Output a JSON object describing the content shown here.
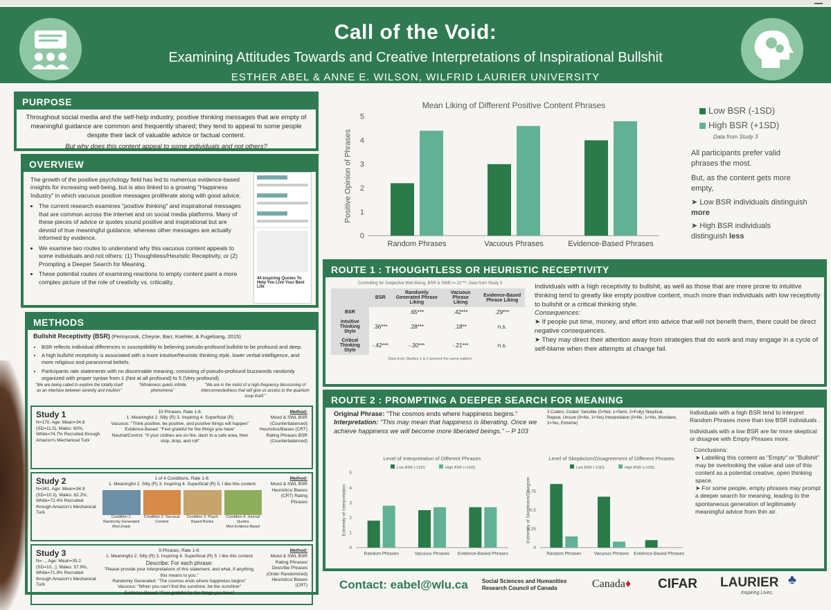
{
  "header": {
    "title": "Call of the Void:",
    "subtitle": "Examining Attitudes Towards and Creative Interpretations of Inspirational Bullshit",
    "authors": "ESTHER ABEL & ANNE E. WILSON, WILFRID LAURIER UNIVERSITY",
    "logo_left": "audience-icon",
    "logo_right": "head-gears-icon"
  },
  "purpose": {
    "heading": "PURPOSE",
    "text": "Throughout social media and the self-help industry, positive thinking messages that are empty of meaningful guidance are common and frequently shared; they tend to appeal to some people despite their lack of valuable advice or factual content.",
    "question": "But why does this content appeal to some individuals and not others?"
  },
  "overview": {
    "heading": "OVERVIEW",
    "intro": "The growth of the positive psychology field has led to numerous evidence-based insights for increasing well-being, but is also linked to a growing \"Happiness Industry\" in which vacuous positive messages proliferate along with good advice.",
    "bullets": [
      "The current research examines \"positive thinking\" and inspirational messages that are common across the internet and on social media platforms. Many of these pieces of advice or quotes sound positive and inspirational but are devoid of true meaningful guidance, whereas other messages are actually informed by evidence.",
      "We examine two routes to understand why this vacuous content appeals to some individuals and not others: (1) Thoughtless/Heuristic Receptivity, or (2) Prompting a Deeper Search for Meaning.",
      "These potential routes of examining reactions to empty content paint a more complex picture of the role of creativity vs. criticality."
    ],
    "thumb_caption": "44 Inspiring Quotes To Help You Live Your Best Life"
  },
  "methods": {
    "heading": "METHODS",
    "bsr_title": "Bullshit Receptivity (BSR)",
    "bsr_cite": "(Pennycook, Cheyne, Barr, Koehler, & Fugelsang, 2015)",
    "bullets": [
      "BSR reflects individual differences in susceptibility to believing pseudo-profound bullshit to be profound and deep.",
      "A high bullshit receptivity is associated with a more intuitive/heuristic thinking style, lower verbal intelligence, and more religious and paranormal beliefs.",
      "Participants rate statements with no discernable meaning, consisting of pseudo-profound buzzwords randomly organized with proper syntax from 1 (Not at all profound) to 5 (Very profound)."
    ],
    "quotes": [
      "\"We are being called to explore the totality itself as an interface between serenity and intuition\"",
      "\"Wholeness quiets infinite phenomena\"",
      "\"We are in the midst of a high-frequency blossoming of interconnectedness that will give us access to the quantum soup itself.\""
    ],
    "study1": {
      "title": "Study 1",
      "participants": "N=170, Age: Mean=34.8 (SD=11.5), Males: 60%, White=74.7% Recruited through Amazon's Mechanical Turk",
      "design": "10 Phrases, Rate 1-6:",
      "scale": "1. Meaningful   2. Silly (R)   3. Inspiring   4. Superficial (R)",
      "vacuous": "Vacuous: \"Think positive, be positive, and positive things will happen\"",
      "evidence": "Evidence-Based: \"Feel grateful for the things you have\"",
      "neutral": "Neutral/Control: \"If your clothes are on fire, dash to a safe area, then stop, drop, and roll\"",
      "method_label": "Method:",
      "method": "Mood & SWL BSR (Counterbalanced) Heuristics/Biases (CRT) Rating Phrases BSR (Counterbalanced)"
    },
    "study2": {
      "title": "Study 2",
      "participants": "N=341, Age: Mean=34.9 (SD=10.3), Males: 62.2%, White=72.4% Recruited through Amazon's Mechanical Turk",
      "design": "1 of 4 Conditions, Rate 1-6:",
      "scale": "1. Meaningful  2. Silly (R)  3. Inspiring  4. Superficial (R)  5. I like this content",
      "conditions": [
        "Condition 1: Randomly Generated",
        "Condition 2: Vacuous Content",
        "Condition 3: Psych Based Books",
        "Condition 4: Journal Quotes"
      ],
      "cond_notes": [
        "Most Empty",
        "",
        "",
        "Most Evidence-Based"
      ],
      "method_label": "Method:",
      "method": "Mood & SWL BSR Heuristics/ Biases (CRT) Rating Phrases"
    },
    "study3": {
      "title": "Study 3",
      "participants": "N=..., Age: Mean=35.2 (SD=10...), Males: 57.9%, White=71.9% Recruited through Amazon's Mechanical Turk",
      "design": "9 Phrases, Rate 1-6:",
      "scale": "1. Meaningful  2. Silly (R)  3. Inspiring  4. Superficial (R)  5. I like this content",
      "describe": "Describe: For each phrase:",
      "describe_q": "\"Please provide your interpretations of this statement, and what, if anything, this means to you.\"",
      "random": "Randomly Generated: \"The cosmos ends where happiness begins\"",
      "vacuous": "Vacuous: \"When you can't find the sunshine, be the sunshine\"",
      "evidence": "Evidence-Based: \"Feel grateful for the things you have\"",
      "method_label": "Method:",
      "method": "Mood & SWL BSR Rating Phrases/ Describe Phrases (Order Randomized) Heuristics/ Biases (CRT)"
    }
  },
  "mean_liking": {
    "title": "Mean Liking of Different Positive Content Phrases",
    "source": "Data from Study 3",
    "notes": [
      "All participants prefer valid phrases the most.",
      "But, as the content gets more empty,"
    ],
    "bullet1_pre": "Low BSR individuals distinguish ",
    "bullet1_em": "more",
    "bullet2_pre": "High BSR individuals distinguish ",
    "bullet2_em": "less"
  },
  "route1": {
    "heading": "ROUTE 1 : THOUGHTLESS OR HEURISTIC RECEPTIVITY",
    "table_caption": "Controlling for Subjective Well-Being, BSR & SWB r=.21***, Data from Study 3",
    "columns": [
      "",
      "BSR",
      "Randomly Generated Phrase Liking",
      "Vacuous Phrase Liking",
      "Evidence-Based Phrase Liking"
    ],
    "rows": [
      [
        "BSR",
        "",
        ".65***",
        ".42***",
        ".29***"
      ],
      [
        "Intuitive Thinking Style",
        ".36***",
        ".28***",
        ".18**",
        "n.s."
      ],
      [
        "Critical Thinking Style",
        "-.42***",
        "-.30***",
        "-.21***",
        "n.s."
      ]
    ],
    "table_foot": "Data from Studies 1 & 2 present the same pattern",
    "text": "Individuals with a high receptivity to bullshit, as well as those that are more prone to intuitive thinking tend to greatly like empty positive content, much more than individuals with low receptivity to bullshit or a critical thinking style.",
    "consequences": "Consequences:",
    "bullets": [
      "If people put time, money, and effort into advice that will not benefit them, there could be direct negative consequences.",
      "They may direct their attention away from strategies that do work and may engage in a cycle of self-blame when their attempts at change fail."
    ]
  },
  "route2": {
    "heading": "ROUTE 2 : PROMPTING A DEEPER SEARCH FOR MEANING",
    "original_label": "Original Phrase:",
    "original": "\"The cosmos ends where happiness begins.\"",
    "interp_label": "Interpretation:",
    "interp": "\"This may mean that happiness is liberating. Once we achieve happiness we will become more liberated beings.\" – P 103",
    "coding": "3 Coders, Coded: Sensible (0=Not, 1=Semi, 2=Fully) Skeptical, Repeat, Unsure (0=No, 1=Yes) Interpretation (0=No, 1=Yes, Mundane, 2=Yes, Extreme)",
    "right_text": [
      "Individuals with a high BSR tend to interpret Random Phrases more than low BSR individuals .",
      "Individuals with a low BSR are far more skeptical or disagree with Empty Phrases more."
    ],
    "conclusions": "Conclusions:",
    "bullets": [
      "Labelling this content as \"Empty\" or \"Bullshit\" may be overlooking the value and use of this content as a potential creative, open thinking space.",
      "For some people, empty phrases may prompt a deeper search for meaning, leading to the spontaneous generation of legitimately meaningful advice from thin air."
    ]
  },
  "footer": {
    "contact": "Contact: eabel@wlu.ca",
    "sshrc": "Social Sciences and Humanities Research Council of Canada",
    "canada": "Canada",
    "cifar": "CIFAR",
    "laurier": "LAURIER",
    "laurier_tag": "Inspiring Lives."
  },
  "colors": {
    "green": "#2f7a52",
    "dark_bar": "#2a7a4a",
    "light_bar": "#62b196"
  },
  "chart_data": [
    {
      "type": "bar",
      "title": "Mean Liking of Different Positive Content Phrases",
      "categories": [
        "Random Phrases",
        "Vacuous Phrases",
        "Evidence-Based Phrases"
      ],
      "series": [
        {
          "name": "Low BSR (-1SD)",
          "values": [
            2.2,
            3.0,
            4.0
          ]
        },
        {
          "name": "High BSR (+1SD)",
          "values": [
            4.4,
            4.6,
            4.8
          ]
        }
      ],
      "ylabel": "Positive Opinion of Phrases",
      "ylim": [
        0,
        5
      ],
      "yticks": [
        0,
        1,
        2,
        3,
        4,
        5
      ],
      "legend": "right"
    },
    {
      "type": "bar",
      "title": "Level of Interpretation of Different Phrases",
      "categories": [
        "Random Phrases",
        "Vacuous Phrases",
        "Evidence-Based Phrases"
      ],
      "series": [
        {
          "name": "Low BSR (-1SD)",
          "values": [
            1.8,
            2.5,
            2.7
          ]
        },
        {
          "name": "High BSR (+1SD)",
          "values": [
            2.8,
            2.7,
            2.7
          ]
        }
      ],
      "ylabel": "Extremity of Interpretation",
      "ylim": [
        0,
        5
      ],
      "yticks": [
        0,
        1,
        2,
        3,
        4,
        5
      ],
      "legend": "top"
    },
    {
      "type": "bar",
      "title": "Level of Skepticism/Disagreement of Different Phrases",
      "categories": [
        "Random Phrases",
        "Vacuous Phrases",
        "Evidence-Based Phrases"
      ],
      "series": [
        {
          "name": "Low BSR (-1SD)",
          "values": [
            0.85,
            0.68,
            0.1
          ]
        },
        {
          "name": "High BSR (+1SD)",
          "values": [
            0.15,
            0.08,
            0.0
          ]
        }
      ],
      "ylabel": "Extremity of Skepticism/Disagree",
      "ylim": [
        0,
        1
      ],
      "yticks": [
        0,
        0.25,
        0.5,
        0.75
      ],
      "legend": "top"
    }
  ]
}
